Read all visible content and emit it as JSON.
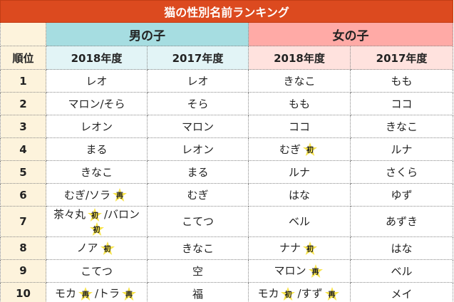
{
  "title": "猫の性別名前ランキング",
  "corner_label": "順位",
  "groups": [
    "男の子",
    "女の子"
  ],
  "years": [
    "2018年度",
    "2017年度",
    "2018年度",
    "2017年度"
  ],
  "rows": [
    {
      "rank": "1",
      "cells": [
        [
          {
            "text": "レオ"
          }
        ],
        [
          {
            "text": "レオ"
          }
        ],
        [
          {
            "text": "きなこ"
          }
        ],
        [
          {
            "text": "もも"
          }
        ]
      ]
    },
    {
      "rank": "2",
      "cells": [
        [
          {
            "text": "マロン/そら"
          }
        ],
        [
          {
            "text": "そら"
          }
        ],
        [
          {
            "text": "もも"
          }
        ],
        [
          {
            "text": "ココ"
          }
        ]
      ]
    },
    {
      "rank": "3",
      "cells": [
        [
          {
            "text": "レオン"
          }
        ],
        [
          {
            "text": "マロン"
          }
        ],
        [
          {
            "text": "ココ"
          }
        ],
        [
          {
            "text": "きなこ"
          }
        ]
      ]
    },
    {
      "rank": "4",
      "cells": [
        [
          {
            "text": "まる"
          }
        ],
        [
          {
            "text": "レオン"
          }
        ],
        [
          {
            "text": "むぎ",
            "badge": "初"
          }
        ],
        [
          {
            "text": "ルナ"
          }
        ]
      ]
    },
    {
      "rank": "5",
      "cells": [
        [
          {
            "text": "きなこ"
          }
        ],
        [
          {
            "text": "まる"
          }
        ],
        [
          {
            "text": "ルナ"
          }
        ],
        [
          {
            "text": "さくら"
          }
        ]
      ]
    },
    {
      "rank": "6",
      "cells": [
        [
          {
            "text": "むぎ/ソラ",
            "badge": "再"
          }
        ],
        [
          {
            "text": "むぎ"
          }
        ],
        [
          {
            "text": "はな"
          }
        ],
        [
          {
            "text": "ゆず"
          }
        ]
      ]
    },
    {
      "rank": "7",
      "cells": [
        [
          {
            "text": "茶々丸",
            "badge": "初"
          },
          {
            "text": "/バロン",
            "badge": "初"
          }
        ],
        [
          {
            "text": "こてつ"
          }
        ],
        [
          {
            "text": "ベル"
          }
        ],
        [
          {
            "text": "あずき"
          }
        ]
      ]
    },
    {
      "rank": "8",
      "cells": [
        [
          {
            "text": "ノア",
            "badge": "初"
          }
        ],
        [
          {
            "text": "きなこ"
          }
        ],
        [
          {
            "text": "ナナ",
            "badge": "初"
          }
        ],
        [
          {
            "text": "はな"
          }
        ]
      ]
    },
    {
      "rank": "9",
      "cells": [
        [
          {
            "text": "こてつ"
          }
        ],
        [
          {
            "text": "空"
          }
        ],
        [
          {
            "text": "マロン",
            "badge": "再"
          }
        ],
        [
          {
            "text": "ベル"
          }
        ]
      ]
    },
    {
      "rank": "10",
      "cells": [
        [
          {
            "text": "モカ",
            "badge": "再"
          },
          {
            "text": "/トラ",
            "badge": "再"
          }
        ],
        [
          {
            "text": "福"
          }
        ],
        [
          {
            "text": "モカ",
            "badge": "初"
          },
          {
            "text": "/すず",
            "badge": "再"
          }
        ],
        [
          {
            "text": "メイ"
          }
        ]
      ]
    }
  ]
}
